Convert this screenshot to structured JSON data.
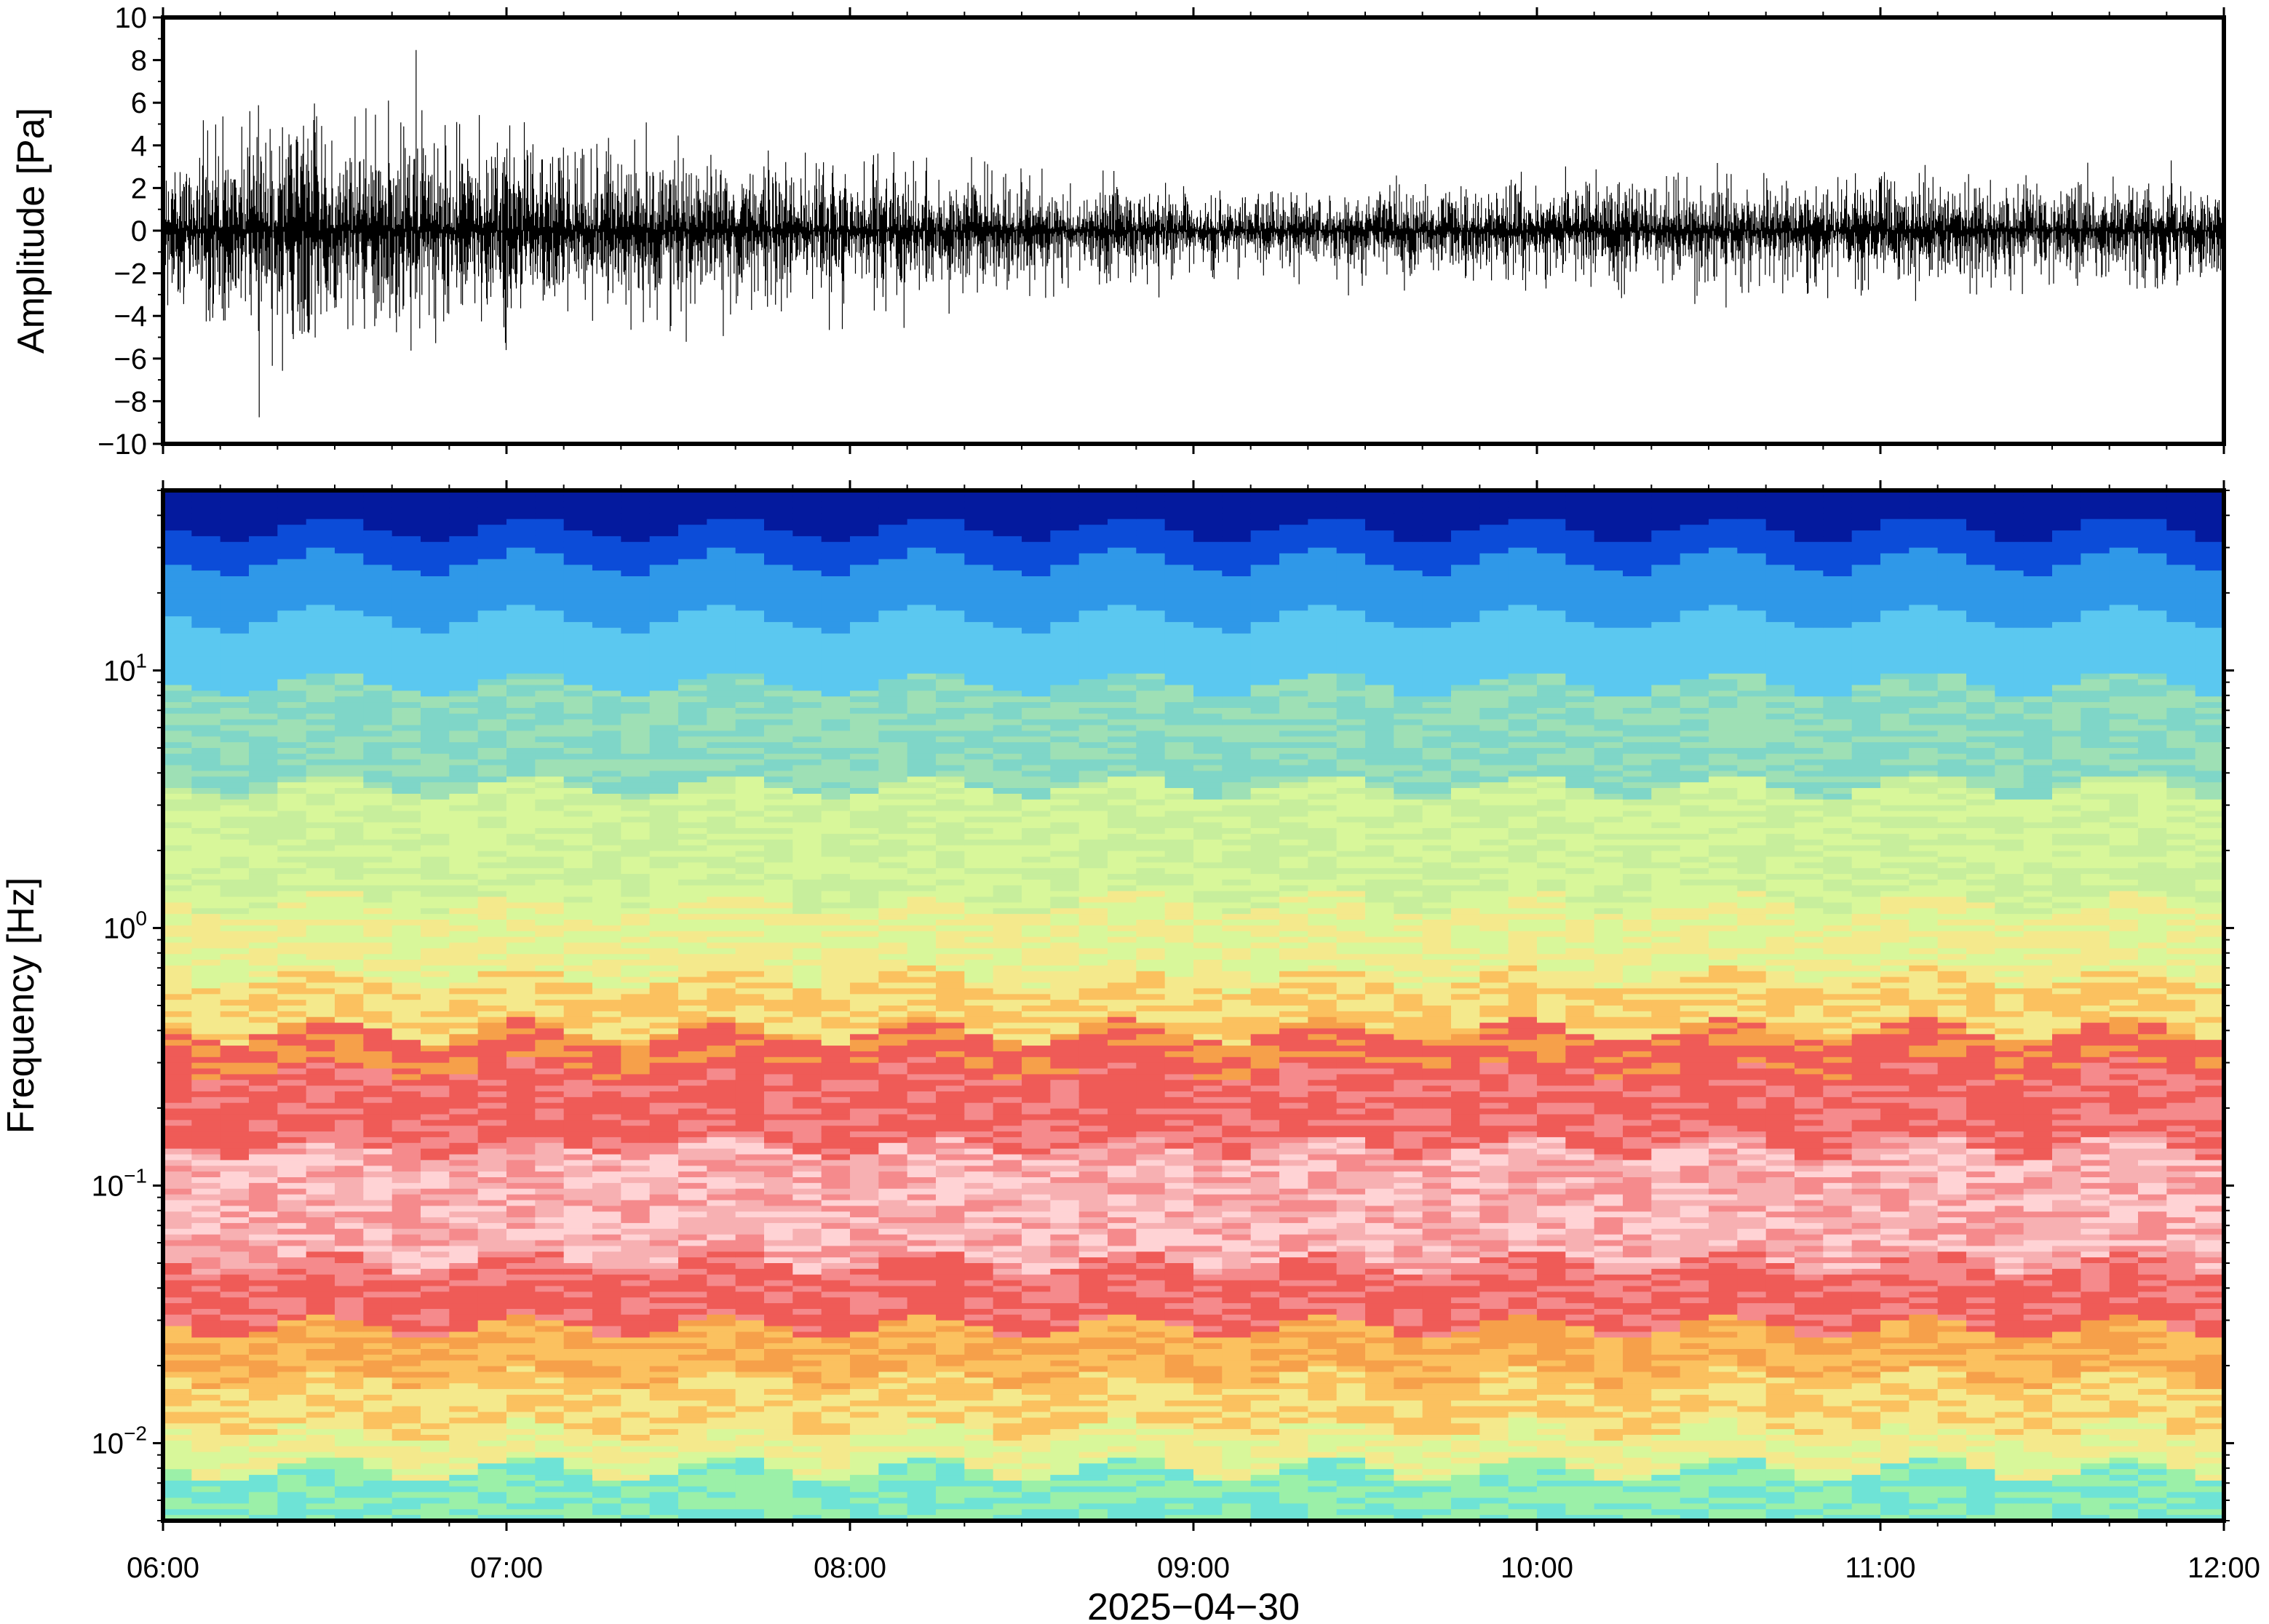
{
  "chart_data": [
    {
      "type": "line",
      "title": "",
      "xlabel": "",
      "ylabel": "Amplitude [Pa]",
      "x_range": [
        "06:00",
        "12:00"
      ],
      "ylim": [
        -10,
        10
      ],
      "y_ticks": [
        10,
        8,
        6,
        4,
        2,
        0,
        -2,
        -4,
        -6,
        -8,
        -10
      ],
      "y_tick_labels": [
        "10",
        "8",
        "6",
        "4",
        "2",
        "0",
        "−2",
        "−4",
        "−6",
        "−8",
        "−10"
      ],
      "grid": false,
      "series": [
        {
          "color": "#000000",
          "x_hours": [
            "06:00",
            "06:15",
            "06:30",
            "06:45",
            "07:00",
            "07:15",
            "07:30",
            "07:45",
            "08:00",
            "08:15",
            "08:30",
            "08:45",
            "09:00",
            "09:15",
            "09:30",
            "09:45",
            "10:00",
            "10:15",
            "10:30",
            "10:45",
            "11:00",
            "11:15",
            "11:30",
            "11:45",
            "12:00"
          ],
          "max_envelope": [
            2.8,
            4.6,
            5.8,
            5.9,
            4.6,
            4.3,
            4.4,
            3.2,
            3.6,
            4.0,
            3.4,
            2.8,
            2.2,
            1.9,
            1.7,
            2.2,
            2.6,
            2.5,
            2.6,
            2.4,
            3.2,
            2.8,
            2.4,
            2.6,
            2.4
          ],
          "min_envelope": [
            -3.4,
            -7.0,
            -5.6,
            -7.1,
            -4.8,
            -4.4,
            -5.6,
            -4.0,
            -5.0,
            -5.0,
            -3.3,
            -3.0,
            -2.6,
            -2.4,
            -3.3,
            -2.8,
            -2.6,
            -3.0,
            -3.8,
            -3.7,
            -3.4,
            -3.2,
            -3.4,
            -2.8,
            -2.6
          ],
          "typical_amplitude": [
            1.6,
            2.2,
            2.1,
            2.0,
            1.8,
            1.6,
            1.5,
            1.4,
            1.3,
            1.2,
            1.0,
            0.9,
            0.7,
            0.7,
            0.8,
            0.9,
            1.0,
            1.0,
            1.0,
            1.0,
            1.1,
            1.1,
            1.0,
            1.0,
            1.0
          ]
        }
      ]
    },
    {
      "type": "heatmap",
      "title": "",
      "xlabel": "2025−04−30",
      "ylabel": "Frequency [Hz]",
      "y_scale": "log",
      "ylim": [
        0.005,
        50
      ],
      "y_ticks": [
        0.01,
        0.1,
        1,
        10
      ],
      "y_tick_labels": [
        {
          "base": "10",
          "exp": "−2"
        },
        {
          "base": "10",
          "exp": "−1"
        },
        {
          "base": "10",
          "exp": "0"
        },
        {
          "base": "10",
          "exp": "1"
        }
      ],
      "x_ticks": [
        "06:00",
        "07:00",
        "08:00",
        "09:00",
        "10:00",
        "11:00",
        "12:00"
      ],
      "colormap": [
        "#6ee3d6",
        "#9bf0a8",
        "#d8f79a",
        "#f4e98c",
        "#fbc15f",
        "#f6a04a",
        "#ef5b57",
        "#f58a8c",
        "#f7b0b2",
        "#ffd3d5",
        "#5bc8f0",
        "#2f98e8",
        "#0c4cd8",
        "#041a9e"
      ],
      "spectral_profile_note": null,
      "time_bins": 72,
      "frequency_bands_hz": [
        50,
        40,
        30,
        20,
        10,
        5,
        2,
        1,
        0.5,
        0.3,
        0.2,
        0.1,
        0.07,
        0.05,
        0.03,
        0.02,
        0.015,
        0.01,
        0.007,
        0.005
      ],
      "grid": false
    }
  ]
}
